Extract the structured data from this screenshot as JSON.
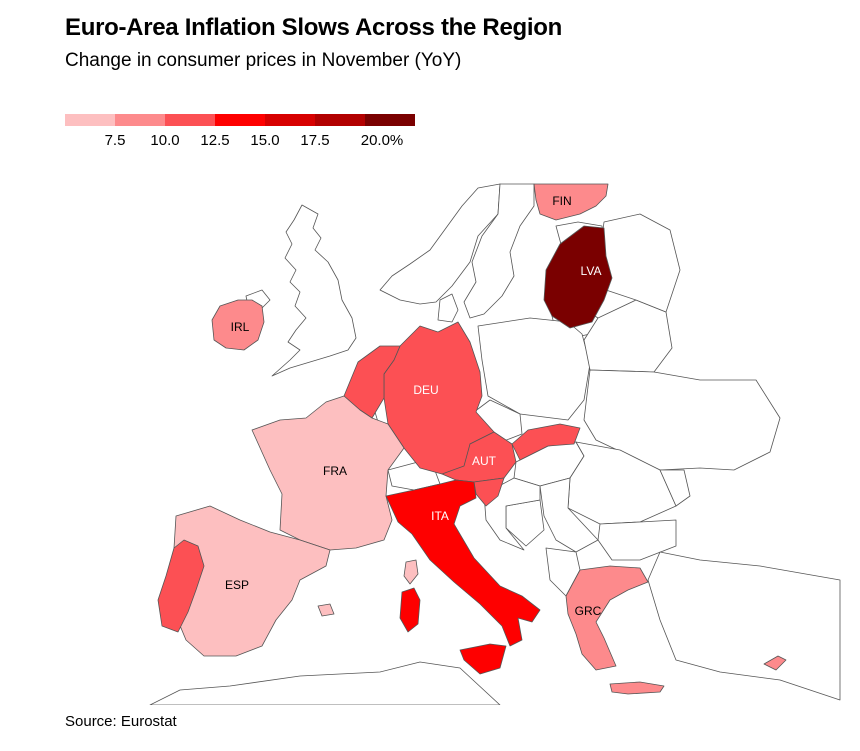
{
  "header": {
    "title": "Euro-Area Inflation Slows Across the Region",
    "subtitle": "Change in consumer prices in November (YoY)"
  },
  "legend": {
    "colors": [
      "#fdbfc0",
      "#fd8a8c",
      "#fc5054",
      "#fe0000",
      "#d70000",
      "#b20000",
      "#7a0000"
    ],
    "ticks": [
      "7.5",
      "10.0",
      "12.5",
      "15.0",
      "17.5",
      "20.0%"
    ]
  },
  "colors": {
    "border": "#555555",
    "other_fill": "#ffffff",
    "label_light": "#000000",
    "label_dark": "#ffffff"
  },
  "countries": [
    {
      "code": "FIN",
      "label": "FIN",
      "bin": 1
    },
    {
      "code": "LVA",
      "label": "LVA",
      "bin": 6
    },
    {
      "code": "IRL",
      "label": "IRL",
      "bin": 1
    },
    {
      "code": "DEU",
      "label": "DEU",
      "bin": 2
    },
    {
      "code": "FRA",
      "label": "FRA",
      "bin": 0
    },
    {
      "code": "AUT",
      "label": "AUT",
      "bin": 2
    },
    {
      "code": "ITA",
      "label": "ITA",
      "bin": 3
    },
    {
      "code": "ESP",
      "label": "ESP",
      "bin": 0
    },
    {
      "code": "GRC",
      "label": "GRC",
      "bin": 1
    }
  ],
  "source": "Source: Eurostat"
}
